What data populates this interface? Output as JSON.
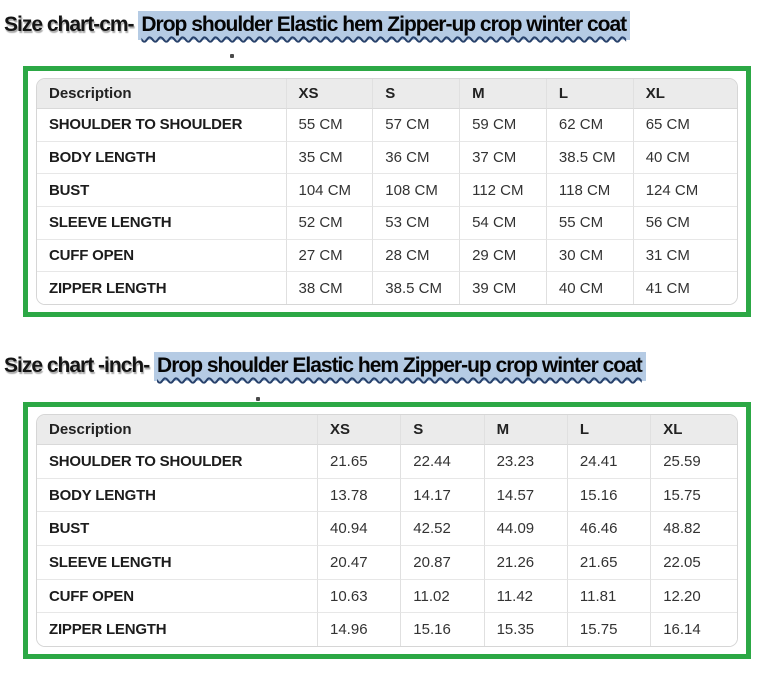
{
  "headings": {
    "cm": {
      "prefix": "Size chart-cm- ",
      "product": "Drop shoulder Elastic hem Zipper-up crop winter coat"
    },
    "inch": {
      "prefix": "Size chart -inch- ",
      "product": "Drop shoulder Elastic hem Zipper-up crop winter coat"
    }
  },
  "colors": {
    "frame_green": "#2ca845",
    "highlight_blue": "#b5cbe4",
    "squiggle_navy": "#27416b",
    "table_header_bg": "#ebebeb"
  },
  "size_chart_cm": {
    "columns": [
      "Description",
      "XS",
      "S",
      "M",
      "L",
      "XL"
    ],
    "rows": [
      {
        "label": "SHOULDER TO SHOULDER",
        "values": [
          "55 CM",
          "57 CM",
          "59 CM",
          "62 CM",
          "65 CM"
        ]
      },
      {
        "label": "BODY LENGTH",
        "values": [
          "35 CM",
          "36 CM",
          "37 CM",
          "38.5 CM",
          "40 CM"
        ]
      },
      {
        "label": "BUST",
        "values": [
          "104 CM",
          "108 CM",
          "112 CM",
          "118 CM",
          "124 CM"
        ]
      },
      {
        "label": "SLEEVE LENGTH",
        "values": [
          "52 CM",
          "53 CM",
          "54 CM",
          "55 CM",
          "56 CM"
        ]
      },
      {
        "label": "CUFF OPEN",
        "values": [
          "27 CM",
          "28 CM",
          "29 CM",
          "30 CM",
          "31 CM"
        ]
      },
      {
        "label": "ZIPPER LENGTH",
        "values": [
          "38 CM",
          "38.5 CM",
          "39 CM",
          "40 CM",
          "41 CM"
        ]
      }
    ]
  },
  "size_chart_inch": {
    "columns": [
      "Description",
      "XS",
      "S",
      "M",
      "L",
      "XL"
    ],
    "rows": [
      {
        "label": "SHOULDER TO SHOULDER",
        "values": [
          "21.65",
          "22.44",
          "23.23",
          "24.41",
          "25.59"
        ]
      },
      {
        "label": "BODY LENGTH",
        "values": [
          "13.78",
          "14.17",
          "14.57",
          "15.16",
          "15.75"
        ]
      },
      {
        "label": "BUST",
        "values": [
          "40.94",
          "42.52",
          "44.09",
          "46.46",
          "48.82"
        ]
      },
      {
        "label": "SLEEVE LENGTH",
        "values": [
          "20.47",
          "20.87",
          "21.26",
          "21.65",
          "22.05"
        ]
      },
      {
        "label": "CUFF OPEN",
        "values": [
          "10.63",
          "11.02",
          "11.42",
          "11.81",
          "12.20"
        ]
      },
      {
        "label": "ZIPPER LENGTH",
        "values": [
          "14.96",
          "15.16",
          "15.35",
          "15.75",
          "16.14"
        ]
      }
    ]
  },
  "stray_marks": {
    "dot1": ".",
    "dot2": "."
  }
}
